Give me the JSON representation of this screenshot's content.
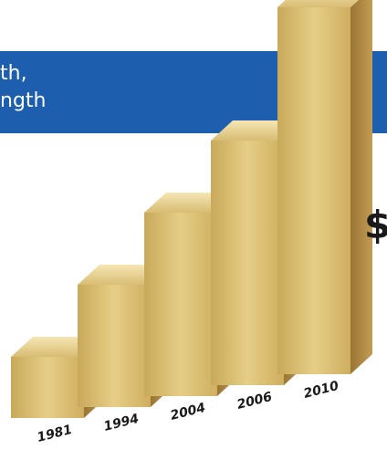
{
  "banner": {
    "line1": "th,",
    "line2": "ngth"
  },
  "side_text": "$",
  "colors": {
    "banner": "#1d5fae",
    "bar_front": "#d9b96a",
    "bar_side": "#a9853f",
    "bar_top": "#efdba0",
    "year_label": "#1a1a1a"
  },
  "chart_data": {
    "type": "bar",
    "title": "",
    "xlabel": "",
    "ylabel": "",
    "categories": [
      "1981",
      "1994",
      "2004",
      "2006",
      "2010"
    ],
    "values": [
      1,
      2,
      3,
      4,
      6
    ],
    "ylim": [
      0,
      6
    ],
    "grid": false,
    "legend": "none",
    "style": "3d-gold-bars"
  }
}
